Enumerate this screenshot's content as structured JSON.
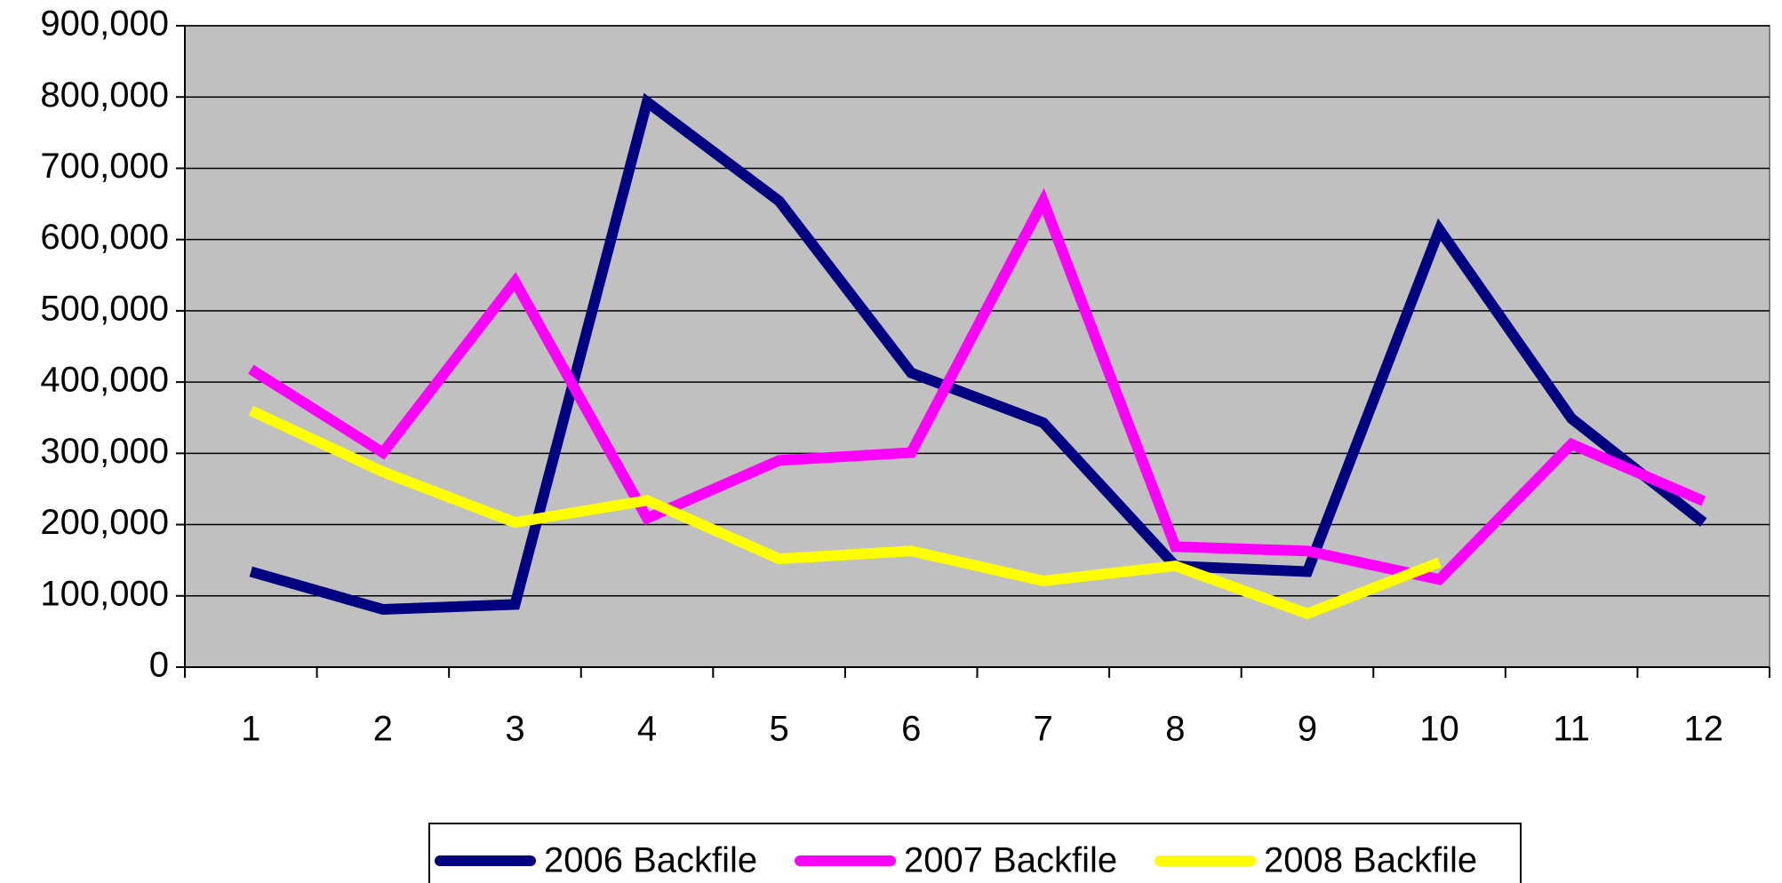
{
  "chart_data": {
    "type": "line",
    "categories": [
      "1",
      "2",
      "3",
      "4",
      "5",
      "6",
      "7",
      "8",
      "9",
      "10",
      "11",
      "12"
    ],
    "series": [
      {
        "name": "2006 Backfile",
        "color": "#000080",
        "values": [
          134000,
          81000,
          88000,
          793000,
          654000,
          413000,
          343000,
          142000,
          134000,
          614000,
          349000,
          203000
        ]
      },
      {
        "name": "2007 Backfile",
        "color": "#ff00ff",
        "values": [
          418000,
          301000,
          541000,
          209000,
          290000,
          301000,
          654000,
          169000,
          163000,
          123000,
          313000,
          233000
        ]
      },
      {
        "name": "2008 Backfile",
        "color": "#ffff00",
        "values": [
          360000,
          274000,
          203000,
          234000,
          152000,
          163000,
          121000,
          142000,
          75000,
          147000,
          null,
          null
        ]
      }
    ],
    "ylim": [
      0,
      900000
    ],
    "yticks": [
      0,
      {
        "value": 100000,
        "label": "100,000"
      },
      {
        "value": 200000,
        "label": "200,000"
      },
      {
        "value": 300000,
        "label": "300,000"
      },
      {
        "value": 400000,
        "label": "400,000"
      },
      {
        "value": 500000,
        "label": "500,000"
      },
      {
        "value": 600000,
        "label": "600,000"
      },
      {
        "value": 700000,
        "label": "700,000"
      },
      {
        "value": 800000,
        "label": "800,000"
      },
      {
        "value": 900000,
        "label": "900,000"
      }
    ],
    "grid": true,
    "legend": "bottom"
  }
}
